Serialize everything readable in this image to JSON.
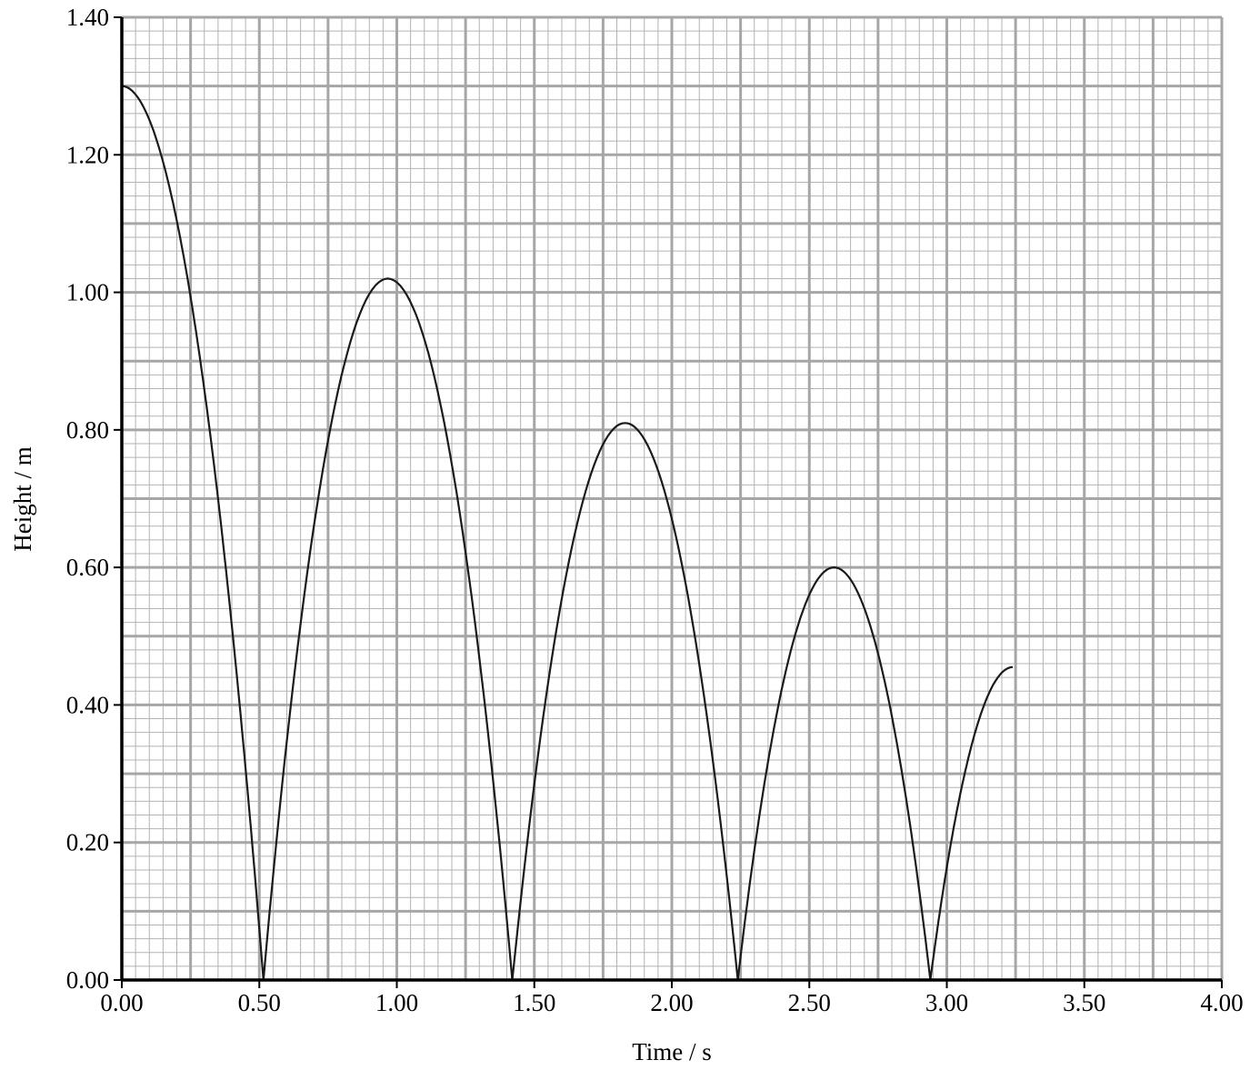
{
  "chart_data": {
    "type": "line",
    "xlabel": "Time / s",
    "ylabel": "Height / m",
    "xlim": [
      0,
      4.0
    ],
    "ylim": [
      0,
      1.4
    ],
    "x_ticks": [
      "0.00",
      "0.50",
      "1.00",
      "1.50",
      "2.00",
      "2.50",
      "3.00",
      "3.50",
      "4.00"
    ],
    "y_ticks": [
      "0.00",
      "0.20",
      "0.40",
      "0.60",
      "0.80",
      "1.00",
      "1.20",
      "1.40"
    ],
    "grid": true,
    "grid_minor_step_x": 0.05,
    "grid_minor_step_y": 0.02,
    "grid_major_step_x": 0.25,
    "grid_major_step_y": 0.1,
    "series": [
      {
        "segments": [
          {
            "kind": "fall",
            "x_start": 0.0,
            "x_end": 0.515,
            "peak_height": 1.3
          },
          {
            "kind": "arc",
            "x_start": 0.515,
            "x_end": 1.42,
            "peak_x": 0.967,
            "peak_height": 1.02
          },
          {
            "kind": "arc",
            "x_start": 1.42,
            "x_end": 2.24,
            "peak_x": 1.83,
            "peak_height": 0.81
          },
          {
            "kind": "arc",
            "x_start": 2.24,
            "x_end": 2.94,
            "peak_x": 2.59,
            "peak_height": 0.6
          },
          {
            "kind": "rise",
            "x_start": 2.94,
            "x_end": 3.24,
            "end_height": 0.455
          }
        ]
      }
    ]
  }
}
